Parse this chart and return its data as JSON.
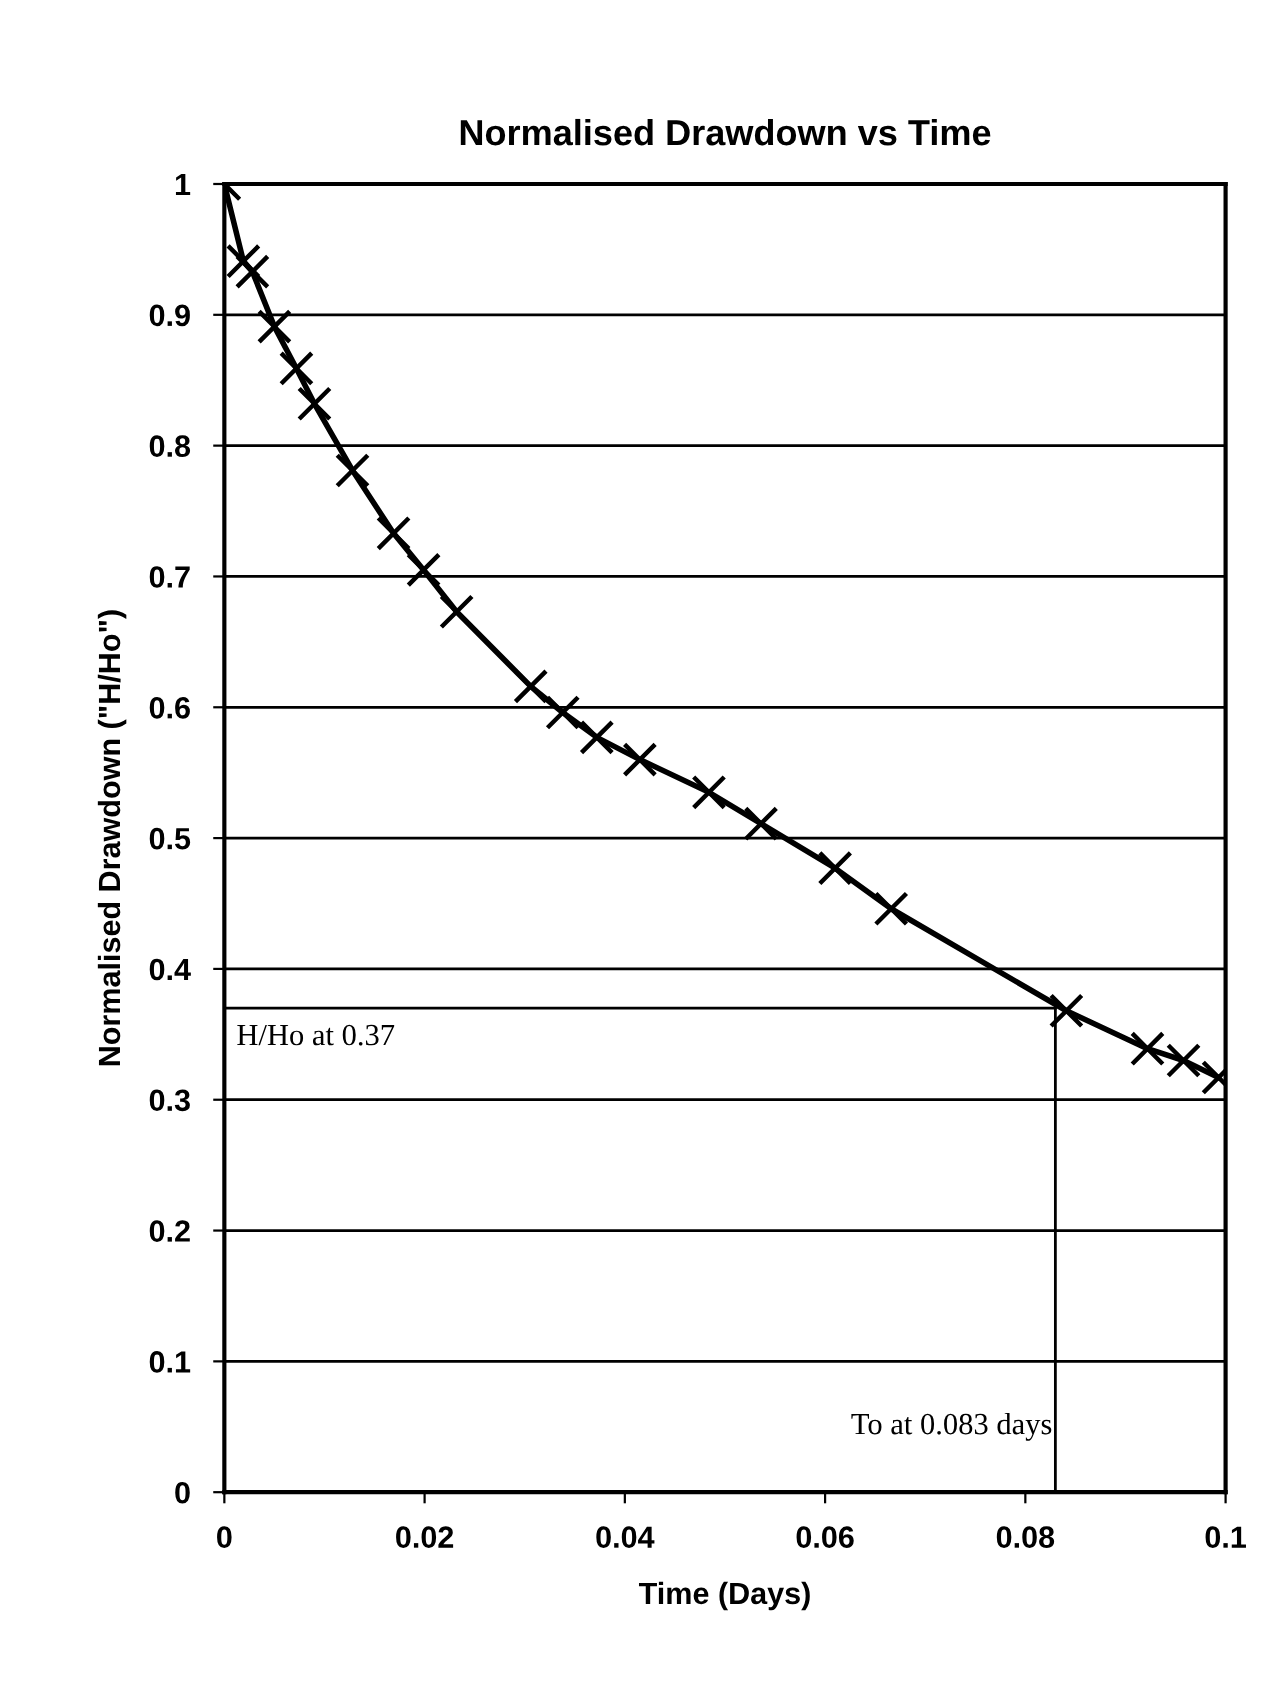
{
  "chart_data": {
    "type": "line",
    "title": "Normalised Drawdown vs Time",
    "xlabel": "Time (Days)",
    "ylabel": "Normalised Drawdown (\"H/Ho\")",
    "x": [
      0,
      0.0019,
      0.0028,
      0.005,
      0.0072,
      0.009,
      0.0128,
      0.0169,
      0.0199,
      0.0232,
      0.0306,
      0.0338,
      0.0372,
      0.0415,
      0.0484,
      0.0536,
      0.061,
      0.0666,
      0.0841,
      0.0922,
      0.0958,
      0.0993
    ],
    "series": [
      {
        "color": "#000000",
        "values": [
          1,
          0.941,
          0.933,
          0.891,
          0.859,
          0.832,
          0.781,
          0.733,
          0.705,
          0.673,
          0.616,
          0.596,
          0.577,
          0.56,
          0.535,
          0.511,
          0.477,
          0.446,
          0.368,
          0.339,
          0.33,
          0.317
        ]
      }
    ],
    "xlim": [
      0,
      0.1
    ],
    "xticks": [
      0,
      0.02,
      0.04,
      0.06,
      0.08,
      0.1
    ],
    "ylim": [
      0,
      1
    ],
    "yticks": [
      0,
      0.1,
      0.2,
      0.3,
      0.4,
      0.5,
      0.6,
      0.7,
      0.8,
      0.9,
      1
    ],
    "grid": "y",
    "marker": "cross",
    "line_style": "solid",
    "ref_lines": [
      {
        "axis": "y",
        "value": 0.37,
        "label": "H/Ho at 0.37",
        "color": "#000000"
      },
      {
        "axis": "x",
        "value": 0.083,
        "label": "To at 0.083 days",
        "color": "#000000"
      }
    ]
  }
}
